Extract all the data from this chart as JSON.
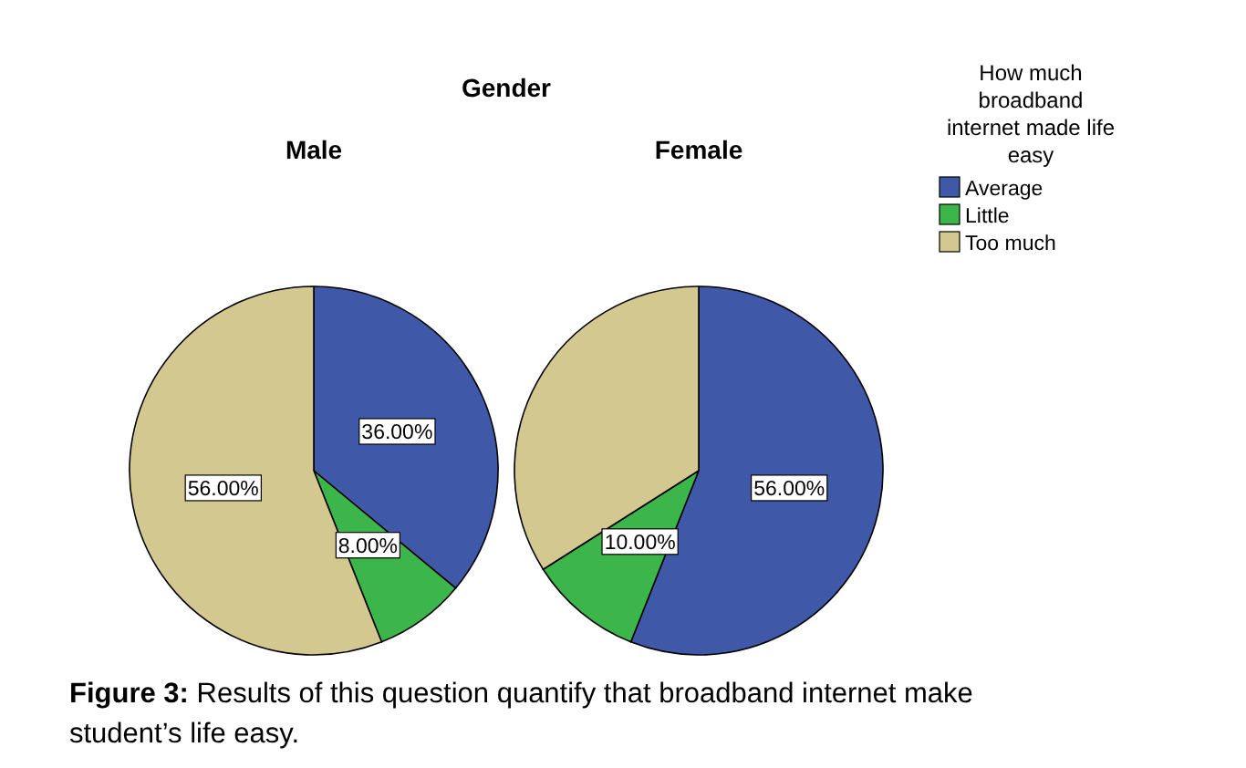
{
  "chart_data": {
    "type": "pie",
    "title": "Gender",
    "categories": [
      "Average",
      "Little",
      "Too much"
    ],
    "colors": [
      "#3f58a8",
      "#3cb54b",
      "#d3c890"
    ],
    "legend": "top right",
    "legend_title": "How much\nbroadband\ninternet made life\neasy",
    "series": [
      {
        "name": "Male",
        "values": [
          36,
          8,
          56
        ],
        "value_labels": [
          "36.00%",
          "8.00%",
          "56.00%"
        ]
      },
      {
        "name": "Female",
        "values": [
          56,
          10,
          34
        ],
        "value_labels": [
          "56.00%",
          "10.00%",
          null
        ]
      }
    ],
    "annotations": [
      "Figure 3: Results of this question quantify that broadband internet make student’s life easy."
    ]
  }
}
